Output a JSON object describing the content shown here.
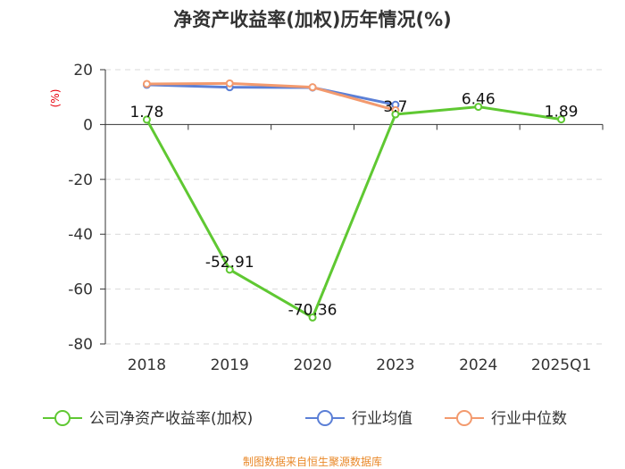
{
  "chart_data": {
    "type": "line",
    "title": "净资产收益率(加权)历年情况(%)",
    "ylabel": "(%)",
    "xlabel": "",
    "categories": [
      "2018",
      "2019",
      "2020",
      "2023",
      "2024",
      "2025Q1"
    ],
    "y_ticks": [
      "20",
      "0",
      "-20",
      "-40",
      "-60",
      "-80"
    ],
    "ylim": [
      -80,
      20
    ],
    "grid": true,
    "legend_position": "bottom",
    "series": [
      {
        "name": "公司净资产收益率(加权)",
        "color": "#5fc832",
        "values": [
          1.78,
          -52.91,
          -70.36,
          3.7,
          6.46,
          1.89
        ],
        "labels": [
          "1.78",
          "-52.91",
          "-70.36",
          "3.7",
          "6.46",
          "1.89"
        ]
      },
      {
        "name": "行业均值",
        "color": "#5b7fd6",
        "values": [
          14.5,
          13.6,
          13.5,
          7.2,
          null,
          null
        ]
      },
      {
        "name": "行业中位数",
        "color": "#f39a6e",
        "values": [
          14.8,
          15.0,
          13.6,
          5.2,
          null,
          null
        ]
      }
    ],
    "source": "制图数据来自恒生聚源数据库"
  }
}
